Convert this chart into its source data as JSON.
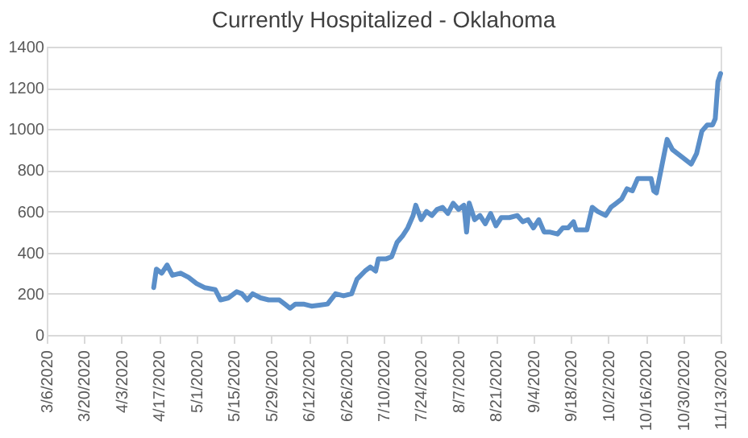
{
  "chart_data": {
    "type": "line",
    "title": "Currently Hospitalized - Oklahoma",
    "x": [
      "2020-04-15",
      "2020-04-16",
      "2020-04-18",
      "2020-04-20",
      "2020-04-22",
      "2020-04-25",
      "2020-04-28",
      "2020-05-01",
      "2020-05-04",
      "2020-05-08",
      "2020-05-10",
      "2020-05-13",
      "2020-05-16",
      "2020-05-18",
      "2020-05-20",
      "2020-05-22",
      "2020-05-25",
      "2020-05-28",
      "2020-06-01",
      "2020-06-03",
      "2020-06-05",
      "2020-06-07",
      "2020-06-10",
      "2020-06-13",
      "2020-06-16",
      "2020-06-19",
      "2020-06-22",
      "2020-06-25",
      "2020-06-28",
      "2020-06-30",
      "2020-07-03",
      "2020-07-05",
      "2020-07-07",
      "2020-07-08",
      "2020-07-11",
      "2020-07-13",
      "2020-07-15",
      "2020-07-17",
      "2020-07-19",
      "2020-07-21",
      "2020-07-22",
      "2020-07-24",
      "2020-07-26",
      "2020-07-28",
      "2020-07-30",
      "2020-08-01",
      "2020-08-03",
      "2020-08-05",
      "2020-08-07",
      "2020-08-09",
      "2020-08-10",
      "2020-08-11",
      "2020-08-13",
      "2020-08-15",
      "2020-08-17",
      "2020-08-19",
      "2020-08-21",
      "2020-08-23",
      "2020-08-26",
      "2020-08-29",
      "2020-08-31",
      "2020-09-02",
      "2020-09-04",
      "2020-09-06",
      "2020-09-08",
      "2020-09-10",
      "2020-09-13",
      "2020-09-15",
      "2020-09-17",
      "2020-09-19",
      "2020-09-20",
      "2020-09-24",
      "2020-09-26",
      "2020-09-28",
      "2020-10-01",
      "2020-10-03",
      "2020-10-05",
      "2020-10-07",
      "2020-10-09",
      "2020-10-11",
      "2020-10-13",
      "2020-10-15",
      "2020-10-18",
      "2020-10-19",
      "2020-10-20",
      "2020-10-22",
      "2020-10-24",
      "2020-10-26",
      "2020-10-30",
      "2020-11-02",
      "2020-11-04",
      "2020-11-06",
      "2020-11-08",
      "2020-11-10",
      "2020-11-11",
      "2020-11-12",
      "2020-11-13"
    ],
    "series": [
      {
        "color": "#5b8fc9",
        "values": [
          230,
          320,
          300,
          340,
          290,
          300,
          280,
          250,
          230,
          220,
          170,
          180,
          210,
          200,
          170,
          200,
          180,
          170,
          170,
          150,
          130,
          150,
          150,
          140,
          145,
          150,
          200,
          190,
          200,
          270,
          310,
          330,
          310,
          370,
          370,
          380,
          450,
          480,
          520,
          580,
          630,
          560,
          600,
          580,
          610,
          620,
          590,
          640,
          610,
          630,
          500,
          640,
          560,
          580,
          540,
          590,
          530,
          570,
          570,
          580,
          550,
          560,
          520,
          560,
          500,
          500,
          490,
          520,
          520,
          550,
          510,
          510,
          620,
          600,
          580,
          620,
          640,
          660,
          710,
          700,
          760,
          760,
          760,
          700,
          690,
          820,
          950,
          900,
          860,
          830,
          880,
          990,
          1020,
          1020,
          1050,
          1230,
          1270
        ]
      }
    ],
    "xlim": [
      "2020-03-06",
      "2020-11-13"
    ],
    "xticks": [
      {
        "value": "2020-03-06",
        "label": "3/6/2020"
      },
      {
        "value": "2020-03-20",
        "label": "3/20/2020"
      },
      {
        "value": "2020-04-03",
        "label": "4/3/2020"
      },
      {
        "value": "2020-04-17",
        "label": "4/17/2020"
      },
      {
        "value": "2020-05-01",
        "label": "5/1/2020"
      },
      {
        "value": "2020-05-15",
        "label": "5/15/2020"
      },
      {
        "value": "2020-05-29",
        "label": "5/29/2020"
      },
      {
        "value": "2020-06-12",
        "label": "6/12/2020"
      },
      {
        "value": "2020-06-26",
        "label": "6/26/2020"
      },
      {
        "value": "2020-07-10",
        "label": "7/10/2020"
      },
      {
        "value": "2020-07-24",
        "label": "7/24/2020"
      },
      {
        "value": "2020-08-07",
        "label": "8/7/2020"
      },
      {
        "value": "2020-08-21",
        "label": "8/21/2020"
      },
      {
        "value": "2020-09-04",
        "label": "9/4/2020"
      },
      {
        "value": "2020-09-18",
        "label": "9/18/2020"
      },
      {
        "value": "2020-10-02",
        "label": "10/2/2020"
      },
      {
        "value": "2020-10-16",
        "label": "10/16/2020"
      },
      {
        "value": "2020-10-30",
        "label": "10/30/2020"
      },
      {
        "value": "2020-11-13",
        "label": "11/13/2020"
      }
    ],
    "ylim": [
      0,
      1400
    ],
    "yticks": [
      0,
      200,
      400,
      600,
      800,
      1000,
      1200,
      1400
    ],
    "grid": "y",
    "marker": "none",
    "line_style": "solid"
  }
}
